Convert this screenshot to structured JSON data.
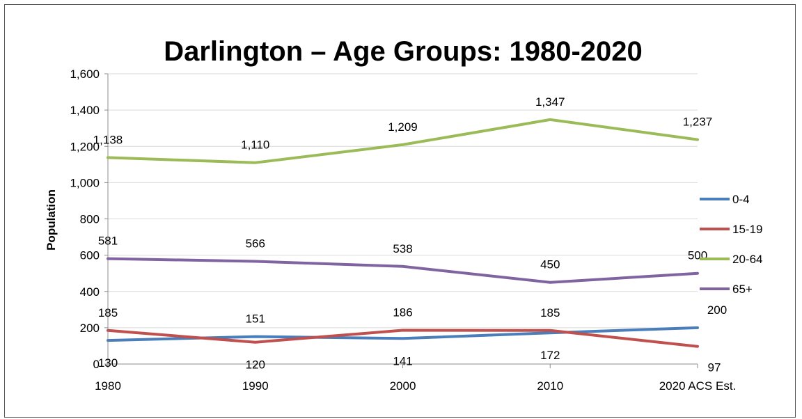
{
  "chart_data": {
    "type": "line",
    "title": "Darlington – Age Groups: 1980-2020",
    "xlabel": "",
    "ylabel": "Population",
    "categories": [
      "1980",
      "1990",
      "2000",
      "2010",
      "2020 ACS Est."
    ],
    "ylim": [
      0,
      1600
    ],
    "yticks": [
      0,
      200,
      400,
      600,
      800,
      1000,
      1200,
      1400,
      1600
    ],
    "ytick_labels": [
      "0",
      "200",
      "400",
      "600",
      "800",
      "1,000",
      "1,200",
      "1,400",
      "1,600"
    ],
    "grid": true,
    "legend_position": "right",
    "series": [
      {
        "name": "0-4",
        "color": "#4a7ebb",
        "values": [
          130,
          151,
          141,
          172,
          200
        ],
        "labels": [
          "130",
          "151",
          "141",
          "172",
          "200"
        ]
      },
      {
        "name": "15-19",
        "color": "#c0504d",
        "values": [
          185,
          120,
          186,
          185,
          97
        ],
        "labels": [
          "185",
          "120",
          "186",
          "185",
          "97"
        ]
      },
      {
        "name": "20-64",
        "color": "#9bbb59",
        "values": [
          1138,
          1110,
          1209,
          1347,
          1237
        ],
        "labels": [
          "1,138",
          "1,110",
          "1,209",
          "1,347",
          "1,237"
        ]
      },
      {
        "name": "65+",
        "color": "#8064a2",
        "values": [
          581,
          566,
          538,
          450,
          500
        ],
        "labels": [
          "581",
          "566",
          "538",
          "450",
          "500"
        ]
      }
    ]
  }
}
